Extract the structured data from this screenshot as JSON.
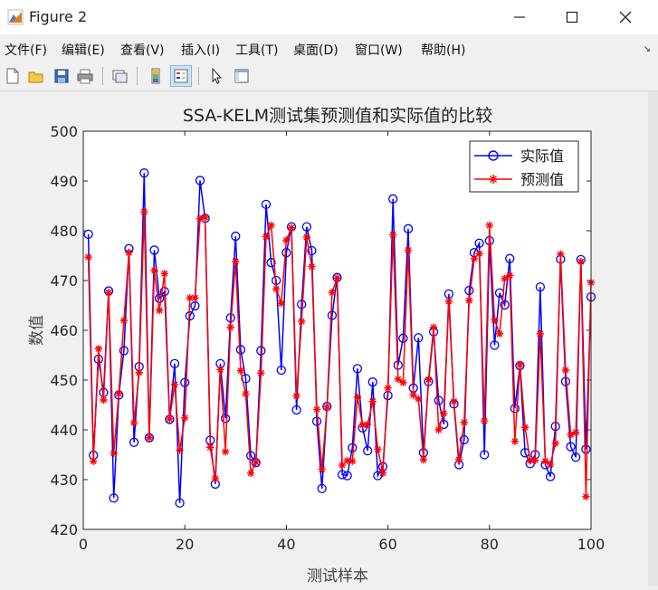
{
  "window": {
    "title": "Figure 2",
    "minimize_icon": "minimize-icon",
    "maximize_icon": "maximize-icon",
    "close_icon": "close-icon"
  },
  "menu": {
    "items": [
      "文件(F)",
      "编辑(E)",
      "查看(V)",
      "插入(I)",
      "工具(T)",
      "桌面(D)",
      "窗口(W)",
      "帮助(H)"
    ],
    "overflow_icon": "corner-arrow-icon"
  },
  "toolbar": {
    "icons": [
      "new-figure-icon",
      "open-file-icon",
      "save-icon",
      "print-icon",
      "link-plot-icon",
      "colorbar-icon",
      "legend-icon",
      "pointer-icon",
      "property-inspector-icon"
    ]
  },
  "chart_data": {
    "type": "line",
    "title": "SSA-KELM测试集预测值和实际值的比较",
    "xlabel": "测试样本",
    "ylabel": "数值",
    "xlim": [
      0,
      100
    ],
    "ylim": [
      420,
      500
    ],
    "xticks": [
      0,
      20,
      40,
      60,
      80,
      100
    ],
    "yticks": [
      420,
      430,
      440,
      450,
      460,
      470,
      480,
      490,
      500
    ],
    "grid": false,
    "legend_position": "top-right",
    "colors": {
      "actual": "#0000ff",
      "predicted": "#ff0000"
    },
    "x": [
      1,
      2,
      3,
      4,
      5,
      6,
      7,
      8,
      9,
      10,
      11,
      12,
      13,
      14,
      15,
      16,
      17,
      18,
      19,
      20,
      21,
      22,
      23,
      24,
      25,
      26,
      27,
      28,
      29,
      30,
      31,
      32,
      33,
      34,
      35,
      36,
      37,
      38,
      39,
      40,
      41,
      42,
      43,
      44,
      45,
      46,
      47,
      48,
      49,
      50,
      51,
      52,
      53,
      54,
      55,
      56,
      57,
      58,
      59,
      60,
      61,
      62,
      63,
      64,
      65,
      66,
      67,
      68,
      69,
      70,
      71,
      72,
      73,
      74,
      75,
      76,
      77,
      78,
      79,
      80,
      81,
      82,
      83,
      84,
      85,
      86,
      87,
      88,
      89,
      90,
      91,
      92,
      93,
      94,
      95,
      96,
      97,
      98,
      99,
      100
    ],
    "series": [
      {
        "name": "实际值",
        "marker": "circle",
        "values": [
          479.3,
          434.9,
          454.2,
          447.5,
          467.9,
          426.3,
          447.0,
          455.9,
          476.4,
          437.5,
          452.7,
          491.6,
          438.4,
          476.1,
          466.4,
          467.8,
          442.1,
          453.3,
          425.3,
          449.5,
          462.9,
          464.9,
          490.1,
          482.5,
          437.9,
          429.1,
          453.3,
          442.3,
          462.5,
          478.9,
          456.1,
          450.3,
          434.8,
          433.4,
          455.9,
          485.3,
          473.6,
          470.0,
          452.0,
          475.6,
          480.8,
          444.0,
          465.2,
          480.8,
          476.0,
          441.7,
          428.2,
          444.7,
          463.0,
          470.6,
          431.0,
          430.8,
          436.4,
          452.3,
          440.4,
          435.8,
          449.6,
          430.8,
          432.6,
          446.9,
          486.4,
          453.0,
          458.4,
          480.4,
          448.4,
          458.5,
          435.4,
          449.7,
          459.7,
          445.9,
          441.1,
          467.3,
          445.2,
          433.0,
          438.0,
          468.0,
          475.6,
          477.5,
          435.0,
          478.0,
          457.0,
          467.5,
          465.1,
          474.4,
          444.3,
          452.9,
          435.4,
          433.2,
          435.0,
          468.7,
          433.0,
          430.6,
          440.7,
          474.3,
          449.7,
          436.6,
          434.5,
          474.2,
          436.1,
          466.7
        ]
      },
      {
        "name": "预测值",
        "marker": "star",
        "values": [
          474.7,
          433.7,
          456.3,
          446.0,
          467.6,
          435.3,
          447.3,
          462.0,
          475.6,
          441.4,
          451.5,
          483.8,
          438.4,
          472.0,
          464.0,
          471.4,
          442.2,
          449.1,
          435.9,
          442.4,
          466.5,
          466.5,
          482.4,
          482.7,
          436.5,
          430.2,
          452.1,
          435.6,
          460.6,
          473.8,
          451.9,
          447.2,
          431.3,
          433.5,
          451.4,
          478.8,
          481.1,
          468.3,
          465.4,
          478.1,
          480.6,
          446.8,
          461.8,
          478.7,
          472.8,
          444.1,
          432.1,
          444.6,
          467.6,
          470.5,
          432.9,
          433.8,
          433.7,
          446.6,
          441.0,
          441.1,
          445.7,
          436.1,
          431.3,
          448.4,
          479.2,
          450.2,
          449.5,
          476.1,
          447.0,
          446.2,
          434.0,
          450.1,
          460.6,
          440.0,
          443.3,
          465.8,
          445.7,
          434.0,
          441.5,
          466.0,
          474.4,
          475.4,
          441.8,
          481.1,
          462.1,
          459.3,
          470.4,
          471.0,
          437.7,
          453.1,
          440.5,
          433.9,
          433.9,
          459.3,
          433.7,
          433.1,
          437.3,
          475.3,
          452.0,
          439.0,
          439.5,
          473.8,
          426.6,
          469.6
        ]
      }
    ]
  }
}
